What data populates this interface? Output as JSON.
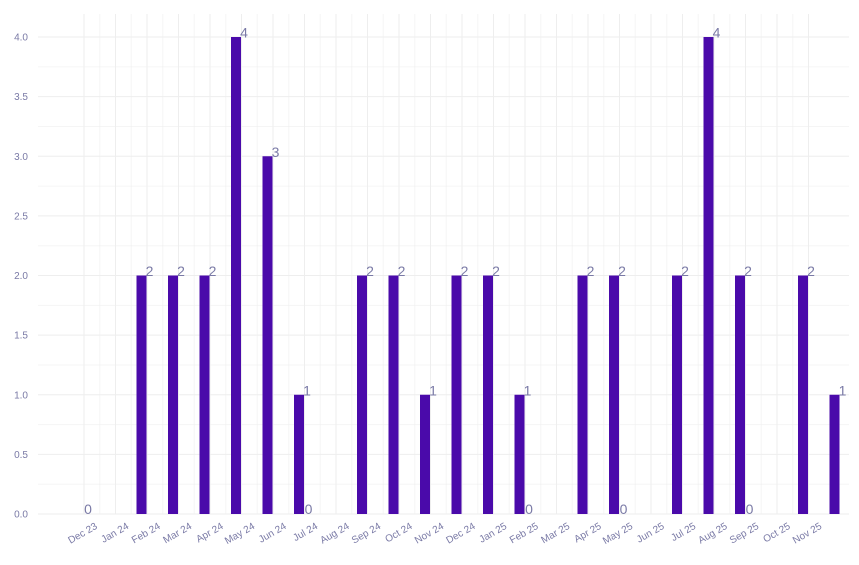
{
  "chart_data": {
    "type": "bar",
    "categories": [
      "Dec 23",
      "Jan 24",
      "Feb 24",
      "Mar 24",
      "Apr 24",
      "May 24",
      "Jun 24",
      "Jul 24",
      "Aug 24",
      "Sep 24",
      "Oct 24",
      "Nov 24",
      "Dec 24",
      "Jan 25",
      "Feb 25",
      "Mar 25",
      "Apr 25",
      "May 25",
      "Jun 25",
      "Jul 25",
      "Aug 25",
      "Sep 25",
      "Oct 25",
      "Nov 25"
    ],
    "values": [
      0,
      2,
      2,
      2,
      4,
      3,
      1,
      0,
      2,
      2,
      1,
      2,
      2,
      1,
      0,
      2,
      2,
      0,
      2,
      4,
      2,
      0,
      2,
      1
    ],
    "ylim": [
      0,
      4
    ],
    "yticks": [
      "0.0",
      "0.5",
      "1.0",
      "1.5",
      "2.0",
      "2.5",
      "3.0",
      "3.5",
      "4.0"
    ],
    "bar_color": "#4a0aaa",
    "label_color": "#7a7aa6",
    "grid": true,
    "data_labels": true
  }
}
